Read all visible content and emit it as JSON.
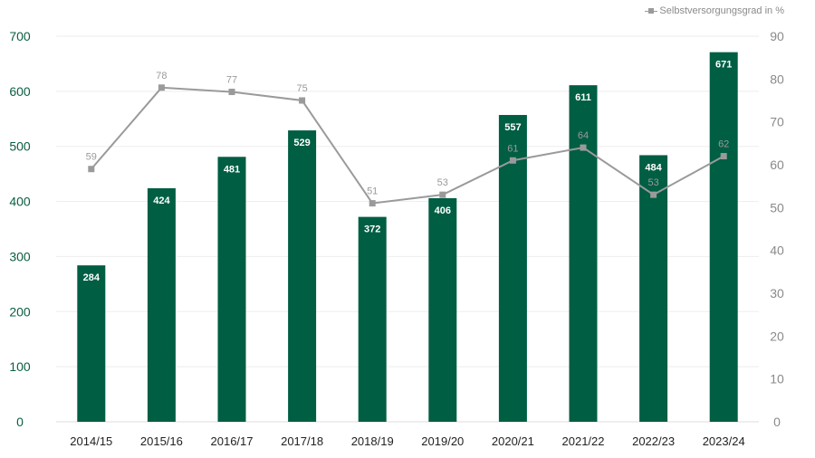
{
  "chart_data": {
    "type": "bar",
    "title": "",
    "xlabel": "",
    "ylabel": "",
    "categories": [
      "2014/15",
      "2015/16",
      "2016/17",
      "2017/18",
      "2018/19",
      "2019/20",
      "2020/21",
      "2021/22",
      "2022/23",
      "2023/24"
    ],
    "series": [
      {
        "name": "",
        "type": "bar",
        "axis": "left",
        "color": "#005e43",
        "values": [
          284,
          424,
          481,
          529,
          372,
          406,
          557,
          611,
          484,
          671
        ]
      },
      {
        "name": "Selbstversorgungsgrad in %",
        "type": "line",
        "axis": "right",
        "color": "#9a9a9a",
        "values": [
          59,
          78,
          77,
          75,
          51,
          53,
          61,
          64,
          53,
          62
        ]
      }
    ],
    "ylim": [
      0,
      700
    ],
    "y_ticks": [
      0,
      100,
      200,
      300,
      400,
      500,
      600,
      700
    ],
    "y2lim": [
      0,
      90
    ],
    "y2_ticks": [
      0,
      10,
      20,
      30,
      40,
      50,
      60,
      70,
      80,
      90
    ],
    "grid": true,
    "legend_position": "top-right",
    "colors": {
      "bar": "#005e43",
      "line": "#9a9a9a",
      "left_axis_text": "#0b5e45",
      "right_axis_text": "#8a8a8a",
      "grid": "#eeeeee",
      "category_text": "#222222"
    }
  },
  "legend": {
    "label": "Selbstversorgungsgrad in %"
  }
}
